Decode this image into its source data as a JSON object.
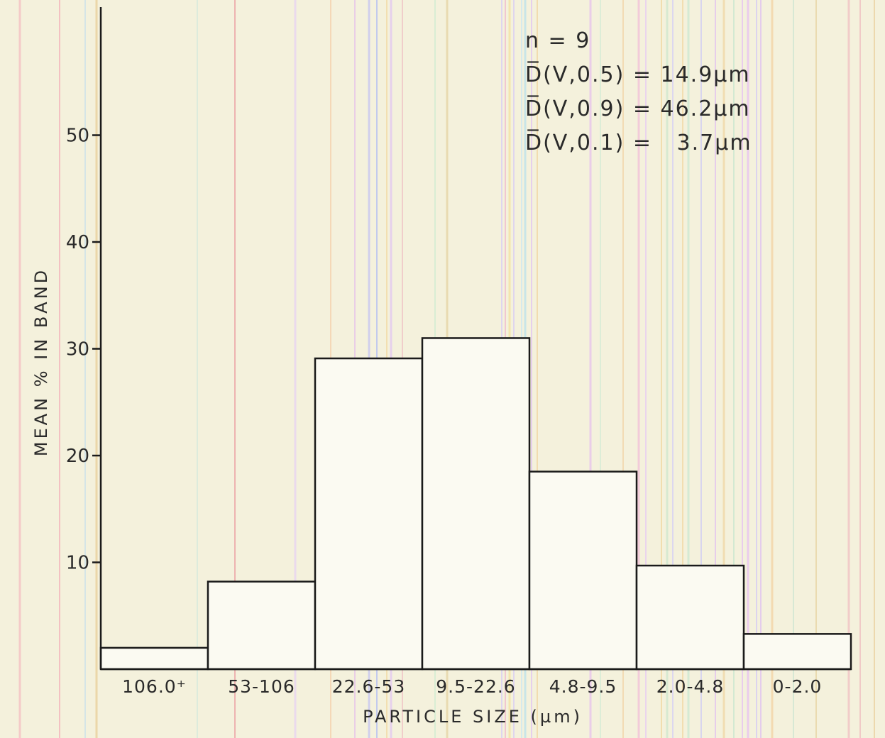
{
  "chart_data": {
    "type": "bar",
    "categories": [
      "106.0⁺",
      "53-106",
      "22.6-53",
      "9.5-22.6",
      "4.8-9.5",
      "2.0-4.8",
      "0-2.0"
    ],
    "values": [
      2,
      8.2,
      29.1,
      31,
      18.5,
      9.7,
      3.3
    ],
    "xlabel": "PARTICLE SIZE (µm)",
    "ylabel": "MEAN % IN BAND",
    "yticks": [
      10,
      20,
      30,
      40,
      50
    ],
    "ylim": [
      0,
      62
    ],
    "grid": false,
    "annotations": [
      "n = 9",
      "D̅(V,0.5) = 14.9µm",
      "D̅(V,0.9) = 46.2µm",
      "D̅(V,0.1) =   3.7µm"
    ]
  },
  "colors": {
    "paper": "#f4f1dc",
    "ink": "#1a1a1a",
    "bar_fill": "#fbfaf2"
  }
}
